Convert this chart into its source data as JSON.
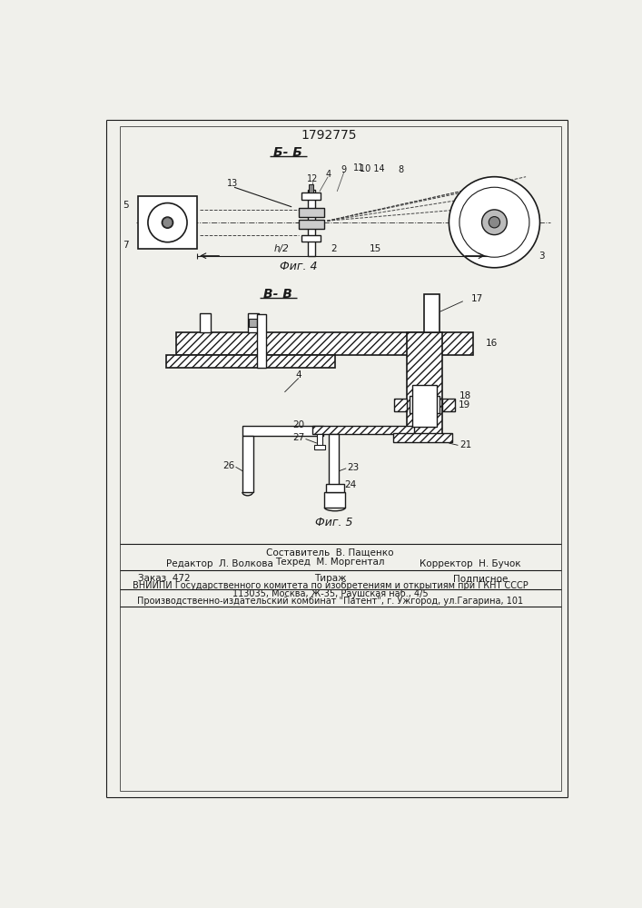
{
  "patent_number": "1792775",
  "fig4_label": "Б- Б",
  "fig5_label": "В- В",
  "fig4_caption": "Фиг. 4",
  "fig5_caption": "Фиг. 5",
  "footer_line1_center_top": "Составитель  В. Пащенко",
  "footer_line1_left": "Редактор  Л. Волкова",
  "footer_line1_center_bot": "Техред  М. Моргентал",
  "footer_line1_right": "Корректор  Н. Бучок",
  "footer_line2_left": "Заказ  472",
  "footer_line2_center": "Тираж",
  "footer_line2_right": "Подписное",
  "footer_line3": "ВНИИПИ Государственного комитета по изобретениям и открытиям при ГКНТ СССР",
  "footer_line4": "113035, Москва, Ж-35, Раушская наб., 4/5",
  "footer_line5": "Производственно-издательский комбинат \"Патент\", г. Ужгород, ул.Гагарина, 101",
  "bg_color": "#f0f0eb",
  "line_color": "#1a1a1a"
}
